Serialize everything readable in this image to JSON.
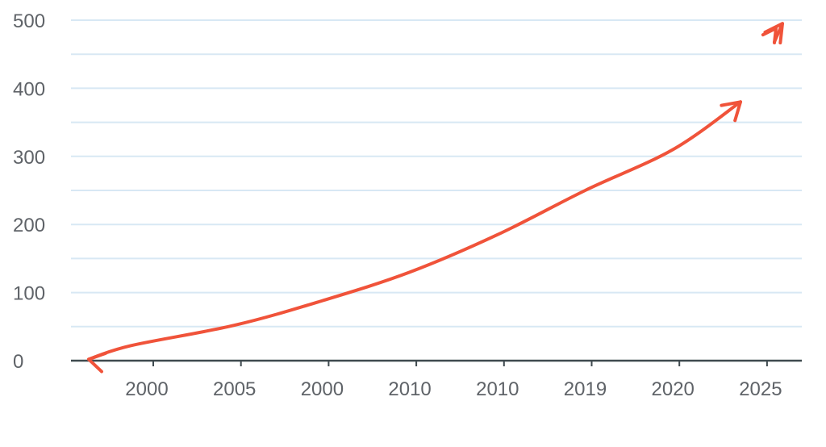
{
  "chart_data": {
    "type": "line",
    "title": "",
    "xlabel": "",
    "ylabel": "",
    "ylim": [
      0,
      500
    ],
    "y_ticks": [
      "0",
      "100",
      "200",
      "300",
      "400",
      "500"
    ],
    "x_tick_labels": [
      "2000",
      "2005",
      "2000",
      "2010",
      "2010",
      "2019",
      "2020",
      "2025"
    ],
    "grid": "horizontal",
    "legend": "none",
    "line_color": "#f0533a",
    "grid_color": "#d8e8f4",
    "axis_color": "#3f4a4f",
    "series": [
      {
        "x": [
          "2000",
          "2005",
          "2000",
          "2010",
          "2010",
          "2019",
          "2020",
          "2025"
        ],
        "values": [
          22,
          52,
          88,
          130,
          185,
          250,
          310,
          380
        ]
      }
    ],
    "annotations": [
      "double-headed arrow on curve",
      "extra arrowhead near 2025 at ~495"
    ]
  }
}
